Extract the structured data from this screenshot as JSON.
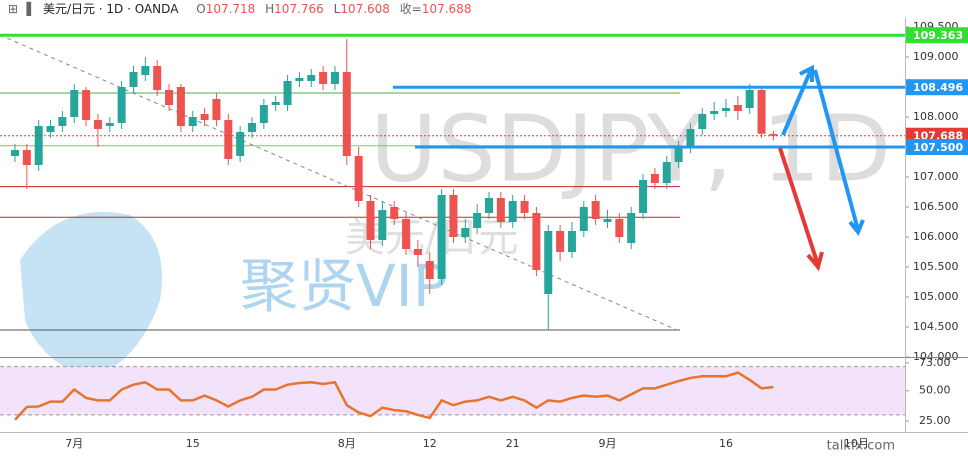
{
  "header": {
    "symbol": "美元/日元 · 1D · OANDA",
    "open_label": "O",
    "high_label": "H",
    "low_label": "L",
    "close_label": "收="
  },
  "watermark": {
    "ticker": "USDJPY, 1D",
    "name": "美元/日元",
    "brand": "聚贤VIP",
    "site": "talkfx.com"
  },
  "chart_data": {
    "type": "candlestick",
    "categories": [
      null,
      null,
      null,
      null,
      null,
      "7月",
      null,
      null,
      null,
      null,
      null,
      null,
      null,
      null,
      null,
      "15",
      null,
      null,
      null,
      null,
      null,
      null,
      null,
      null,
      null,
      null,
      null,
      null,
      "8月",
      null,
      null,
      null,
      null,
      null,
      null,
      "12",
      null,
      null,
      null,
      null,
      null,
      null,
      "21",
      null,
      null,
      null,
      null,
      null,
      null,
      null,
      "9月",
      null,
      null,
      null,
      null,
      null,
      null,
      null,
      null,
      null,
      "16",
      null,
      null,
      null,
      null,
      null,
      null,
      null,
      null,
      null,
      null,
      "10月"
    ],
    "open": [
      107.35,
      107.45,
      107.2,
      107.75,
      107.85,
      108.0,
      108.45,
      107.95,
      107.85,
      107.9,
      108.5,
      108.7,
      108.85,
      108.45,
      108.5,
      107.85,
      108.05,
      108.3,
      107.95,
      107.35,
      107.75,
      107.9,
      108.2,
      108.2,
      108.6,
      108.6,
      108.75,
      108.55,
      108.75,
      107.35,
      106.6,
      105.95,
      106.5,
      106.3,
      105.8,
      105.6,
      105.3,
      106.7,
      106.0,
      106.15,
      106.4,
      106.65,
      106.25,
      106.6,
      106.4,
      105.05,
      106.1,
      105.75,
      106.1,
      106.6,
      106.25,
      106.3,
      105.9,
      106.4,
      107.05,
      106.9,
      107.25,
      107.5,
      107.8,
      108.05,
      108.1,
      108.2,
      108.15,
      108.45,
      107.718,
      null,
      null,
      null,
      null,
      null,
      null,
      null
    ],
    "high": [
      107.55,
      107.55,
      107.95,
      107.95,
      108.1,
      108.55,
      108.5,
      108.05,
      108.0,
      108.6,
      108.85,
      109.0,
      108.95,
      108.55,
      108.55,
      108.1,
      108.15,
      108.4,
      108.05,
      107.85,
      108.0,
      108.3,
      108.35,
      108.7,
      108.75,
      108.8,
      108.85,
      108.85,
      109.3,
      107.5,
      106.7,
      106.6,
      106.6,
      106.4,
      105.95,
      105.75,
      106.8,
      106.8,
      106.3,
      106.55,
      106.75,
      106.75,
      106.7,
      106.7,
      106.5,
      106.2,
      106.2,
      106.25,
      106.6,
      106.7,
      106.45,
      106.4,
      106.5,
      107.05,
      107.15,
      107.35,
      107.6,
      107.9,
      108.15,
      108.25,
      108.3,
      108.35,
      108.55,
      108.5,
      107.766,
      null,
      null,
      null,
      null,
      null,
      null,
      null
    ],
    "low": [
      107.25,
      106.8,
      107.1,
      107.65,
      107.75,
      107.9,
      107.85,
      107.5,
      107.75,
      107.8,
      108.4,
      108.6,
      108.35,
      108.1,
      107.75,
      107.75,
      107.85,
      107.85,
      107.2,
      107.25,
      107.65,
      107.8,
      108.1,
      108.1,
      108.5,
      108.5,
      108.45,
      108.45,
      107.2,
      106.5,
      105.8,
      105.85,
      106.2,
      105.7,
      105.5,
      105.05,
      105.2,
      105.9,
      105.9,
      106.05,
      106.3,
      106.15,
      106.15,
      106.3,
      105.35,
      104.45,
      105.6,
      105.65,
      106.0,
      106.2,
      106.15,
      105.9,
      105.8,
      106.3,
      106.8,
      106.8,
      107.15,
      107.4,
      107.7,
      107.95,
      108.0,
      107.95,
      108.05,
      107.65,
      107.608,
      null,
      null,
      null,
      null,
      null,
      null,
      null
    ],
    "close": [
      107.45,
      107.2,
      107.85,
      107.85,
      108.0,
      108.45,
      107.95,
      107.8,
      107.9,
      108.5,
      108.75,
      108.85,
      108.45,
      108.2,
      107.85,
      108.0,
      107.95,
      107.95,
      107.3,
      107.75,
      107.9,
      108.2,
      108.25,
      108.6,
      108.65,
      108.7,
      108.55,
      108.75,
      107.35,
      106.6,
      105.95,
      106.45,
      106.3,
      105.8,
      105.7,
      105.3,
      106.7,
      106.0,
      106.15,
      106.4,
      106.65,
      106.25,
      106.6,
      106.4,
      105.45,
      106.1,
      105.75,
      106.1,
      106.5,
      106.3,
      106.3,
      106.0,
      106.4,
      106.95,
      106.9,
      107.25,
      107.5,
      107.8,
      108.05,
      108.1,
      108.15,
      108.1,
      108.45,
      107.72,
      107.688,
      null,
      null,
      null,
      null,
      null,
      null,
      null
    ],
    "up_color": "#26a69a",
    "down_color": "#ef5350",
    "ylim": [
      104.0,
      109.65
    ],
    "yticks": [
      {
        "value": 104.0,
        "label": "104.000"
      },
      {
        "value": 104.5,
        "label": "104.500"
      },
      {
        "value": 105.0,
        "label": "105.000"
      },
      {
        "value": 105.5,
        "label": "105.500"
      },
      {
        "value": 106.0,
        "label": "106.000"
      },
      {
        "value": 106.5,
        "label": "106.500"
      },
      {
        "value": 107.0,
        "label": "107.000"
      },
      {
        "value": 107.5,
        "label": "107.500"
      },
      {
        "value": 108.0,
        "label": "108.000"
      },
      {
        "value": 108.5,
        "label": "108.500"
      },
      {
        "value": 109.0,
        "label": "109.000"
      },
      {
        "value": 109.5,
        "label": "109.500"
      }
    ],
    "price_lines": [
      109.363,
      108.496,
      107.688,
      {
        "value": 107.5,
        "label": "107.500"
      }
    ],
    "price_line_colors": [
      "#33dd33",
      "#2196f3",
      "#e53935",
      "#2196f3"
    ],
    "guide_lines": [
      108.4,
      107.52,
      106.84,
      106.33,
      104.45
    ],
    "guide_line_colors": [
      "#4caf50",
      "#8bc34a",
      "#c62828",
      "#c62828",
      "#555555"
    ],
    "rsi": {
      "color": "#e8732c",
      "values": [
        26,
        36.6,
        37,
        41,
        41,
        51,
        44,
        42,
        42,
        51,
        55,
        57,
        51,
        51,
        42,
        42,
        46,
        42,
        37,
        42,
        45,
        51,
        51,
        55,
        56.4,
        57,
        55.6,
        57,
        38,
        32,
        29,
        36,
        34,
        33,
        30,
        27.5,
        42,
        38,
        41,
        42,
        45,
        42,
        45,
        42,
        36,
        42,
        41,
        44,
        46,
        45,
        46,
        42,
        47,
        52,
        52,
        55,
        58,
        60.6,
        62,
        62,
        62,
        65,
        59,
        52,
        53,
        null,
        null,
        null,
        null,
        null,
        null,
        null
      ],
      "ylim": [
        17.5,
        77.1
      ],
      "yticks": [
        {
          "value": 25,
          "label": "25.00"
        },
        {
          "value": 50,
          "label": "50.00"
        },
        {
          "value": 73,
          "label": "73.00"
        }
      ],
      "bands": [
        30,
        70
      ],
      "band_color": "#f3e3fa"
    }
  }
}
